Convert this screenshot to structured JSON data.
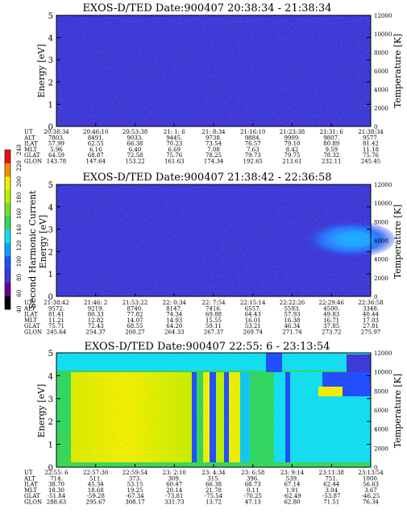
{
  "colors": {
    "deep_blue": "#3a3ad8",
    "blue": "#1f4fff",
    "cyan": "#10e0f0",
    "green": "#30d860",
    "yellow": "#f0f000",
    "lime": "#b8f000"
  },
  "colorbar": {
    "label": "Second Harmonic Current",
    "ticks": [
      "40",
      "60",
      "80",
      "100",
      "120",
      "140",
      "160",
      "180",
      "200",
      "220",
      "240"
    ]
  },
  "chart_data": [
    {
      "type": "heatmap",
      "title": "EXOS-D/TED   Date:900407  20:38:34 - 21:38:34",
      "ylabel": "Energy [eV]",
      "y2label": "Temperature [K]",
      "yticks": [
        "0",
        "1",
        "2",
        "3",
        "4",
        "5"
      ],
      "y2ticks": [
        "0",
        "2000",
        "4000",
        "6000",
        "8000",
        "10000",
        "12000"
      ],
      "ylim": [
        0,
        5
      ],
      "y2lim": [
        0,
        12000
      ],
      "row_labels": [
        "UT",
        "ALT",
        "ILAT",
        "MLT",
        "GLAT",
        "GLON"
      ],
      "columns": [
        [
          "20:38:34",
          "7803.",
          "57.99",
          "5.96",
          "64.59",
          "143.78"
        ],
        [
          "20:46:10",
          "8491.",
          "62.55",
          "6.16",
          "68.87",
          "147.64"
        ],
        [
          "20:53:38",
          "9033.",
          "66.38",
          "6.40",
          "72.58",
          "153.22"
        ],
        [
          "21: 1: 6",
          "9445.",
          "70.23",
          "6.69",
          "75.76",
          "161.63"
        ],
        [
          "21: 8:34",
          "9738.",
          "73.54",
          "7.08",
          "78.25",
          "174.34"
        ],
        [
          "21:16:10",
          "9884.",
          "76.57",
          "7.63",
          "79.73",
          "192.65"
        ],
        [
          "21:23:38",
          "9909.",
          "79.10",
          "8.42",
          "79.75",
          "213.61"
        ],
        [
          "21:31: 6",
          "9807.",
          "80.89",
          "9.59",
          "78.32",
          "232.11"
        ],
        [
          "21:38:34",
          "9577.",
          "81.42",
          "11.18",
          "75.76",
          "245.45"
        ]
      ]
    },
    {
      "type": "heatmap",
      "title": "EXOS-D/TED   Date:900407  21:38:42 - 22:36:58",
      "ylabel": "Energy [eV]",
      "y2label": "Temperature [K]",
      "yticks": [
        "0",
        "1",
        "2",
        "3",
        "4",
        "5"
      ],
      "y2ticks": [
        "0",
        "2000",
        "4000",
        "6000",
        "8000",
        "10000",
        "12000"
      ],
      "ylim": [
        0,
        5
      ],
      "y2lim": [
        0,
        12000
      ],
      "row_labels": [
        "UT",
        "ALT",
        "ILAT",
        "MLT",
        "GLAT",
        "GLON"
      ],
      "columns": [
        [
          "21:38:42",
          "9572.",
          "81.41",
          "11.21",
          "75.71",
          "245.64"
        ],
        [
          "21:46: 2",
          "9219.",
          "80.33",
          "12.82",
          "72.43",
          "254.37"
        ],
        [
          "21:53:22",
          "8740.",
          "77.82",
          "14.07",
          "68.55",
          "260.27"
        ],
        [
          "22: 0:34",
          "8147.",
          "74.34",
          "14.93",
          "64.20",
          "264.33"
        ],
        [
          "22: 7:54",
          "7416.",
          "69.88",
          "15.55",
          "59.11",
          "267.37"
        ],
        [
          "22:15:14",
          "6557.",
          "64.43",
          "16.01",
          "53.21",
          "269.74"
        ],
        [
          "22:22:26",
          "5593.",
          "57.93",
          "16.38",
          "46.34",
          "271.74"
        ],
        [
          "22:29:46",
          "4500.",
          "49.83",
          "16.71",
          "37.85",
          "273.72"
        ],
        [
          "22:36:58",
          "3348.",
          "40.44",
          "17.03",
          "27.81",
          "275.97"
        ]
      ]
    },
    {
      "type": "heatmap",
      "title": "EXOS-D/TED   Date:900407  22:55: 6 - 23:13:54",
      "ylabel": "Energy [eV]",
      "y2label": "Temperature [K]",
      "yticks": [
        "0",
        "1",
        "2",
        "3",
        "4",
        "5"
      ],
      "y2ticks": [
        "0",
        "2000",
        "4000",
        "6000",
        "8000",
        "10000",
        "12000"
      ],
      "ylim": [
        0,
        5
      ],
      "y2lim": [
        0,
        12000
      ],
      "row_labels": [
        "UT",
        "ALT",
        "ILAT",
        "MLT",
        "GLAT",
        "GLON"
      ],
      "columns": [
        [
          "22:55: 6",
          "714.",
          "38.70",
          "18.30",
          "-51.84",
          "288.63"
        ],
        [
          "22:57:30",
          "511.",
          "45.34",
          "18.68",
          "-59.28",
          "295.67"
        ],
        [
          "22:59:54",
          "373.",
          "53.15",
          "19.25",
          "-67.34",
          "308.17"
        ],
        [
          "23: 2:10",
          "309.",
          "60.47",
          "20.14",
          "-73.81",
          "331.73"
        ],
        [
          "23: 4:34",
          "315.",
          "66.38",
          "21.78",
          "-75.54",
          "13.72"
        ],
        [
          "23: 6:58",
          "396.",
          "68.73",
          "0.11",
          "-70.25",
          "47.13"
        ],
        [
          "23: 9:14",
          "539.",
          "67.14",
          "1.91",
          "-62.49",
          "62.80"
        ],
        [
          "23:11:38",
          "751.",
          "62.44",
          "3.04",
          "-53.87",
          "71.51"
        ],
        [
          "23:13:54",
          "1000.",
          "56.63",
          "3.67",
          "-46.25",
          "76.34"
        ]
      ]
    }
  ]
}
